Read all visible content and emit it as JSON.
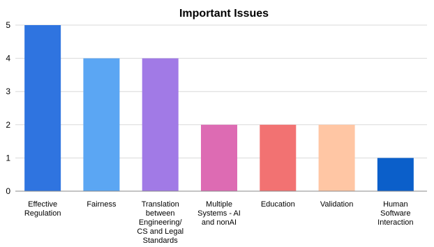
{
  "chart_data": {
    "type": "bar",
    "title": "Important Issues",
    "xlabel": "",
    "ylabel": "",
    "ylim": [
      0,
      5
    ],
    "yticks": [
      0,
      1,
      2,
      3,
      4,
      5
    ],
    "grid": true,
    "categories": [
      "Effective Regulation",
      "Fairness",
      "Translation between Engineering/ CS and Legal Standards",
      "Multiple Systems - AI and nonAI",
      "Education",
      "Validation",
      "Human Software Interaction"
    ],
    "category_lines": [
      [
        "Effective",
        "Regulation"
      ],
      [
        "Fairness"
      ],
      [
        "Translation",
        "between",
        "Engineering/",
        "CS and Legal",
        "Standards"
      ],
      [
        "Multiple",
        "Systems - AI",
        "and nonAI"
      ],
      [
        "Education"
      ],
      [
        "Validation"
      ],
      [
        "Human",
        "Software",
        "Interaction"
      ]
    ],
    "values": [
      5,
      4,
      4,
      2,
      2,
      2,
      1
    ],
    "colors": [
      "#2f74e0",
      "#5ba6f3",
      "#a17ae6",
      "#dd6bb3",
      "#f27272",
      "#ffc6a4",
      "#0b5fca"
    ]
  }
}
